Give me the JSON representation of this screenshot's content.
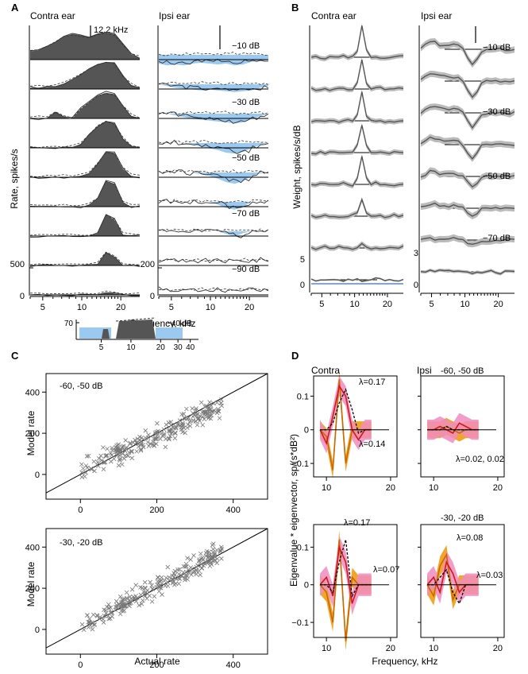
{
  "figure": {
    "panels": [
      "A",
      "B",
      "C",
      "D"
    ]
  },
  "chart_data": [
    {
      "panel": "A",
      "type": "area",
      "subpanels": [
        "Contra ear",
        "Ipsi ear"
      ],
      "ylabel": "Rate, spikes/s",
      "xlabel": "Frequency, kHz",
      "x_ticks": [
        "5",
        "10",
        "20"
      ],
      "y_scale_contra": {
        "label": "500",
        "zero": "0"
      },
      "y_scale_ipsi": {
        "label": "200",
        "zero": "0"
      },
      "marker_label": "12.2 kHz",
      "level_labels": [
        "−10 dB",
        "−30 dB",
        "−50 dB",
        "−70 dB",
        "−90 dB"
      ],
      "n_rows": 9,
      "contra_profiles": [
        [
          0.3,
          0.35,
          0.5,
          0.65,
          0.85,
          0.95,
          0.9,
          0.85,
          0.95,
          1.0,
          0.95,
          0.6,
          0.2,
          0.05
        ],
        [
          0.05,
          0.05,
          0.08,
          0.1,
          0.2,
          0.35,
          0.55,
          0.75,
          0.9,
          1.0,
          0.95,
          0.5,
          0.15,
          0.05
        ],
        [
          0.0,
          0.0,
          0.0,
          0.25,
          0.05,
          0.0,
          0.35,
          0.6,
          0.85,
          0.95,
          0.9,
          0.45,
          0.1,
          0.0
        ],
        [
          0.0,
          0.0,
          0.0,
          0.0,
          0.0,
          0.0,
          0.15,
          0.5,
          0.8,
          1.0,
          0.9,
          0.35,
          0.05,
          0.0
        ],
        [
          0.0,
          0.0,
          0.0,
          0.0,
          0.0,
          0.0,
          0.05,
          0.15,
          0.5,
          0.95,
          0.9,
          0.3,
          0.05,
          0.0
        ],
        [
          0.0,
          0.0,
          0.0,
          0.0,
          0.0,
          0.0,
          0.0,
          0.05,
          0.3,
          0.95,
          0.85,
          0.15,
          0.0,
          0.0
        ],
        [
          0.0,
          0.0,
          0.0,
          0.0,
          0.0,
          0.0,
          0.0,
          0.0,
          0.1,
          0.8,
          0.6,
          0.05,
          0.0,
          0.0
        ],
        [
          0.0,
          0.0,
          0.0,
          0.0,
          0.0,
          0.0,
          0.0,
          0.0,
          0.05,
          0.5,
          0.3,
          0.0,
          0.0,
          0.0
        ],
        [
          0.0,
          0.0,
          0.0,
          0.0,
          0.0,
          0.0,
          0.0,
          0.0,
          0.0,
          0.08,
          0.05,
          0.0,
          0.0,
          0.0
        ]
      ],
      "ipsi_profiles": [
        [
          -0.5,
          -0.6,
          -0.55,
          -0.6,
          -0.5,
          -0.45,
          -0.5,
          -0.55,
          -0.5,
          -0.6,
          -0.55,
          -0.4,
          -0.35,
          -0.3
        ],
        [
          0.0,
          -0.1,
          -0.2,
          -0.25,
          -0.3,
          -0.35,
          -0.3,
          -0.35,
          -0.4,
          -0.45,
          -0.4,
          -0.35,
          -0.2,
          -0.1
        ],
        [
          0.0,
          0.0,
          -0.1,
          -0.2,
          -0.3,
          -0.35,
          -0.4,
          -0.45,
          -0.5,
          -0.55,
          -0.5,
          -0.3,
          -0.15,
          0.0
        ],
        [
          0.0,
          0.0,
          0.0,
          0.0,
          -0.1,
          -0.2,
          -0.3,
          -0.4,
          -0.55,
          -0.6,
          -0.5,
          -0.3,
          -0.1,
          0.0
        ],
        [
          0.0,
          0.0,
          0.0,
          0.0,
          0.0,
          -0.1,
          -0.2,
          -0.35,
          -0.55,
          -0.65,
          -0.5,
          -0.2,
          -0.05,
          0.0
        ],
        [
          0.0,
          0.0,
          0.0,
          0.0,
          0.0,
          0.0,
          0.0,
          -0.15,
          -0.35,
          -0.45,
          -0.25,
          0.0,
          0.0,
          0.0
        ],
        [
          0.0,
          0.0,
          0.0,
          0.0,
          0.0,
          0.0,
          0.0,
          0.0,
          -0.15,
          -0.3,
          -0.1,
          0.0,
          0.0,
          0.0
        ],
        [
          0.0,
          0.0,
          0.0,
          0.0,
          0.0,
          0.0,
          0.0,
          0.0,
          0.0,
          0.0,
          0.0,
          0.0,
          0.0,
          0.0
        ],
        [
          0.0,
          0.0,
          0.0,
          0.0,
          0.0,
          0.0,
          0.0,
          0.0,
          0.0,
          0.0,
          0.0,
          0.0,
          0.0,
          0.0
        ]
      ],
      "inset": {
        "y_tick": "70",
        "x_ticks": [
          "5",
          "10",
          "20",
          "30",
          "40"
        ],
        "level_label": "−40 dB"
      }
    },
    {
      "panel": "B",
      "type": "line",
      "subpanels": [
        "Contra ear",
        "Ipsi ear"
      ],
      "ylabel": "Weight, spikes/s/dB",
      "x_ticks": [
        "5",
        "10",
        "20"
      ],
      "y_scale_contra": {
        "label": "5",
        "zero": "0"
      },
      "y_scale_ipsi": {
        "label": "3",
        "zero": "0"
      },
      "level_labels": [
        "−10 dB",
        "−30 dB",
        "−50 dB",
        "−70 dB"
      ],
      "n_rows": 8,
      "contra_peak_heights": [
        1.0,
        0.95,
        0.95,
        0.95,
        0.9,
        0.6,
        0.15,
        0.0
      ],
      "ipsi_dip_depths": [
        1.0,
        0.95,
        0.9,
        0.8,
        0.65,
        0.5,
        0.3,
        0.1
      ]
    },
    {
      "panel": "C",
      "type": "scatter",
      "xlabel": "Actual rate",
      "ylabel": "Model rate",
      "x_ticks": [
        "0",
        "200",
        "400"
      ],
      "y_ticks": [
        "0",
        "200",
        "400"
      ],
      "xlim": [
        -90,
        490
      ],
      "ylim": [
        -120,
        490
      ],
      "plots": [
        {
          "label": "-60, -50 dB",
          "slope": 0.85,
          "intercept": 20,
          "spread": 40
        },
        {
          "label": "-30, -20 dB",
          "slope": 1.0,
          "intercept": 10,
          "spread": 35
        }
      ]
    },
    {
      "panel": "D",
      "type": "line",
      "xlabel": "Frequency, kHz",
      "ylabel": "Eigenvalue * eigenvector, sp/(s*dB²)",
      "x_ticks": [
        "10",
        "20"
      ],
      "y_ticks": [
        "0.1",
        "0",
        "−0.1"
      ],
      "ylim": [
        -0.14,
        0.16
      ],
      "titles": {
        "contra": "Contra",
        "ipsi": "Ipsi",
        "top_levels": "-60, -50 dB",
        "bottom_levels": "-30, -20 dB"
      },
      "plots": [
        {
          "lambda_labels": [
            "λ=0.17",
            "λ=0.14"
          ],
          "red": [
            0.0,
            -0.04,
            0.04,
            0.13,
            0.1,
            0.0,
            -0.03,
            0.0,
            0.0
          ],
          "orange": [
            0.0,
            -0.02,
            -0.12,
            0.15,
            -0.1,
            0.0,
            0.0,
            0.0,
            0.0
          ],
          "dashed": [
            0.0,
            0.0,
            0.02,
            0.08,
            0.12,
            0.06,
            -0.01,
            0.0,
            0.0
          ]
        },
        {
          "lambda_labels": [
            "λ=0.02, 0.02"
          ],
          "red": [
            0.0,
            0.0,
            0.01,
            0.0,
            -0.01,
            0.02,
            0.01,
            0.0,
            0.0
          ],
          "orange": [
            0.0,
            0.0,
            0.0,
            0.01,
            0.0,
            -0.01,
            0.0,
            0.0,
            0.0
          ],
          "dashed": [
            0.0,
            0.0,
            0.0,
            0.01,
            0.0,
            0.0,
            0.0,
            0.0,
            0.0
          ]
        },
        {
          "lambda_labels": [
            "λ=0.17",
            "λ=0.07"
          ],
          "red": [
            0.0,
            0.02,
            -0.03,
            0.1,
            0.06,
            -0.05,
            0.0,
            0.0,
            0.0
          ],
          "orange": [
            0.0,
            -0.02,
            -0.1,
            0.12,
            -0.15,
            0.02,
            0.0,
            0.0,
            0.0
          ],
          "dashed": [
            0.0,
            0.0,
            -0.02,
            0.06,
            0.12,
            -0.03,
            0.0,
            0.0,
            0.0
          ]
        },
        {
          "lambda_labels": [
            "λ=0.08",
            "λ=0.03"
          ],
          "red": [
            0.0,
            0.02,
            -0.02,
            0.06,
            0.03,
            -0.02,
            0.0,
            0.0,
            0.0
          ],
          "orange": [
            0.0,
            -0.03,
            0.05,
            0.08,
            -0.04,
            0.0,
            0.0,
            0.0,
            0.0
          ],
          "dashed": [
            0.0,
            0.0,
            0.02,
            0.04,
            -0.02,
            -0.05,
            0.0,
            0.0,
            0.0
          ]
        }
      ]
    }
  ]
}
